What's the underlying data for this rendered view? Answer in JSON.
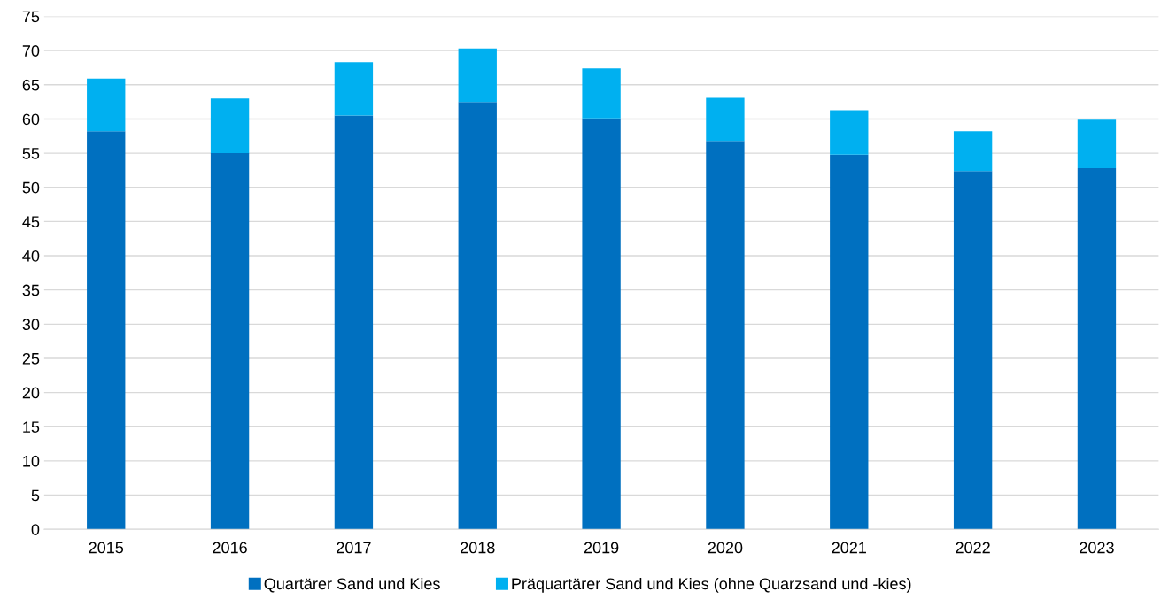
{
  "chart_data": {
    "type": "bar",
    "stacked": true,
    "categories": [
      "2015",
      "2016",
      "2017",
      "2018",
      "2019",
      "2020",
      "2021",
      "2022",
      "2023"
    ],
    "series": [
      {
        "name": "Quartärer Sand und Kies",
        "color": "#0070c0",
        "values": [
          58.2,
          55.0,
          60.5,
          62.5,
          60.1,
          56.8,
          54.8,
          52.4,
          52.8
        ]
      },
      {
        "name": "Präquartärer Sand und Kies (ohne Quarzsand und -kies)",
        "color": "#00b0f0",
        "values": [
          7.7,
          8.0,
          7.8,
          7.8,
          7.3,
          6.3,
          6.5,
          5.8,
          7.1
        ]
      }
    ],
    "ylim": [
      0,
      75
    ],
    "yticks": [
      0,
      5,
      10,
      15,
      20,
      25,
      30,
      35,
      40,
      45,
      50,
      55,
      60,
      65,
      70,
      75
    ],
    "grid": "y",
    "legend": "bottom"
  }
}
